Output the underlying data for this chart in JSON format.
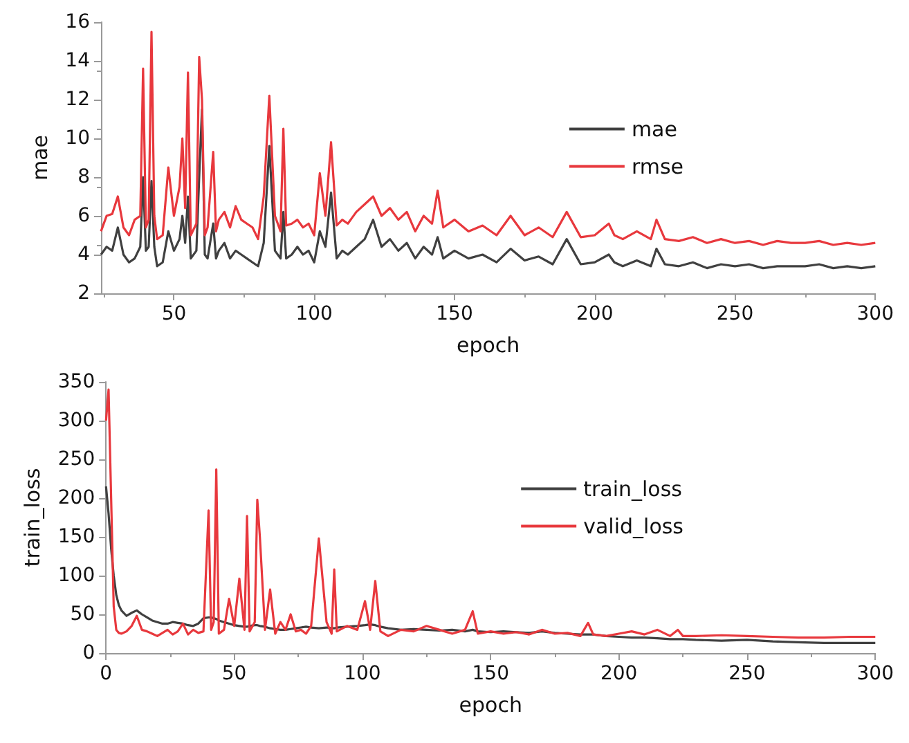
{
  "chart_data": [
    {
      "type": "line",
      "xlabel": "epoch",
      "ylabel": "mae",
      "xlim": [
        24,
        300
      ],
      "xticks": [
        50,
        100,
        150,
        200,
        250,
        300
      ],
      "ylim": [
        2,
        16
      ],
      "yticks": [
        2,
        4,
        6,
        8,
        10,
        12,
        14,
        16
      ],
      "grid": false,
      "legend": "right",
      "marker": "none",
      "line_style": "solid",
      "x": [
        24,
        26,
        28,
        30,
        32,
        34,
        36,
        38,
        39,
        40,
        41,
        42,
        43,
        44,
        46,
        48,
        50,
        52,
        53,
        54,
        55,
        56,
        58,
        59,
        60,
        61,
        62,
        64,
        65,
        66,
        68,
        70,
        72,
        74,
        76,
        78,
        80,
        82,
        84,
        86,
        88,
        89,
        90,
        92,
        94,
        96,
        98,
        100,
        102,
        104,
        106,
        108,
        110,
        112,
        115,
        118,
        121,
        124,
        127,
        130,
        133,
        136,
        139,
        142,
        144,
        146,
        150,
        155,
        160,
        165,
        170,
        175,
        180,
        185,
        190,
        195,
        200,
        205,
        207,
        210,
        215,
        220,
        222,
        225,
        230,
        235,
        240,
        245,
        250,
        255,
        260,
        265,
        270,
        275,
        280,
        285,
        290,
        295,
        300
      ],
      "series": [
        {
          "name": "mae",
          "color": "#404040",
          "values": [
            4.0,
            4.4,
            4.2,
            5.4,
            4.0,
            3.6,
            3.8,
            4.4,
            8.0,
            4.2,
            4.4,
            7.8,
            4.4,
            3.4,
            3.6,
            5.2,
            4.2,
            4.8,
            6.0,
            4.6,
            7.0,
            3.8,
            4.2,
            8.0,
            11.5,
            4.0,
            3.8,
            5.6,
            3.8,
            4.2,
            4.6,
            3.8,
            4.2,
            4.0,
            3.8,
            3.6,
            3.4,
            4.6,
            9.6,
            4.2,
            3.8,
            6.2,
            3.8,
            4.0,
            4.4,
            4.0,
            4.2,
            3.6,
            5.2,
            4.4,
            7.2,
            3.8,
            4.2,
            4.0,
            4.4,
            4.8,
            5.8,
            4.4,
            4.8,
            4.2,
            4.6,
            3.8,
            4.4,
            4.0,
            4.9,
            3.8,
            4.2,
            3.8,
            4.0,
            3.6,
            4.3,
            3.7,
            3.9,
            3.5,
            4.8,
            3.5,
            3.6,
            4.0,
            3.6,
            3.4,
            3.7,
            3.4,
            4.3,
            3.5,
            3.4,
            3.6,
            3.3,
            3.5,
            3.4,
            3.5,
            3.3,
            3.4,
            3.4,
            3.4,
            3.5,
            3.3,
            3.4,
            3.3,
            3.4
          ]
        },
        {
          "name": "rmse",
          "color": "#e8383d",
          "values": [
            5.2,
            6.0,
            6.1,
            7.0,
            5.4,
            5.0,
            5.8,
            6.0,
            13.6,
            5.4,
            5.8,
            15.5,
            6.0,
            4.8,
            5.0,
            8.5,
            6.0,
            7.5,
            10.0,
            6.4,
            13.4,
            5.0,
            5.6,
            14.2,
            12.0,
            5.0,
            5.4,
            9.3,
            5.2,
            5.8,
            6.2,
            5.4,
            6.5,
            5.8,
            5.6,
            5.4,
            4.8,
            7.0,
            12.2,
            6.0,
            5.2,
            10.5,
            5.5,
            5.6,
            5.8,
            5.4,
            5.6,
            5.0,
            8.2,
            6.0,
            9.8,
            5.5,
            5.8,
            5.6,
            6.2,
            6.6,
            7.0,
            6.0,
            6.4,
            5.8,
            6.2,
            5.2,
            6.0,
            5.6,
            7.3,
            5.4,
            5.8,
            5.2,
            5.5,
            5.0,
            6.0,
            5.0,
            5.4,
            4.9,
            6.2,
            4.9,
            5.0,
            5.6,
            5.0,
            4.8,
            5.2,
            4.8,
            5.8,
            4.8,
            4.7,
            4.9,
            4.6,
            4.8,
            4.6,
            4.7,
            4.5,
            4.7,
            4.6,
            4.6,
            4.7,
            4.5,
            4.6,
            4.5,
            4.6
          ]
        }
      ]
    },
    {
      "type": "line",
      "xlabel": "epoch",
      "ylabel": "train_loss",
      "xlim": [
        0,
        300
      ],
      "xticks": [
        0,
        50,
        100,
        150,
        200,
        250,
        300
      ],
      "ylim": [
        0,
        350
      ],
      "yticks": [
        0,
        50,
        100,
        150,
        200,
        250,
        300,
        350
      ],
      "grid": false,
      "legend": "right",
      "marker": "none",
      "line_style": "solid",
      "x": [
        0,
        1,
        2,
        3,
        4,
        5,
        6,
        8,
        10,
        12,
        14,
        16,
        18,
        20,
        22,
        24,
        26,
        28,
        30,
        32,
        34,
        36,
        38,
        40,
        41,
        42,
        43,
        44,
        46,
        48,
        50,
        52,
        54,
        55,
        56,
        58,
        59,
        60,
        62,
        64,
        66,
        68,
        70,
        72,
        74,
        76,
        78,
        80,
        83,
        86,
        88,
        89,
        90,
        94,
        98,
        101,
        103,
        105,
        107,
        110,
        115,
        120,
        125,
        130,
        135,
        140,
        143,
        145,
        150,
        155,
        160,
        165,
        170,
        175,
        180,
        185,
        188,
        190,
        195,
        200,
        205,
        210,
        215,
        220,
        223,
        225,
        230,
        240,
        250,
        260,
        270,
        280,
        290,
        300
      ],
      "series": [
        {
          "name": "train_loss",
          "color": "#404040",
          "values": [
            215,
            180,
            135,
            100,
            75,
            62,
            55,
            48,
            52,
            55,
            50,
            46,
            42,
            40,
            38,
            38,
            40,
            39,
            38,
            36,
            35,
            38,
            45,
            46,
            46,
            45,
            44,
            42,
            40,
            38,
            36,
            35,
            34,
            34,
            35,
            36,
            36,
            35,
            34,
            32,
            31,
            30,
            30,
            31,
            32,
            33,
            34,
            33,
            32,
            33,
            32,
            32,
            33,
            34,
            35,
            36,
            37,
            36,
            34,
            32,
            30,
            31,
            30,
            29,
            30,
            28,
            30,
            28,
            27,
            28,
            27,
            26,
            28,
            26,
            25,
            24,
            24,
            24,
            22,
            21,
            20,
            20,
            19,
            18,
            18,
            18,
            17,
            16,
            17,
            15,
            14,
            13,
            13,
            13
          ]
        },
        {
          "name": "valid_loss",
          "color": "#e8383d",
          "values": [
            300,
            340,
            200,
            60,
            30,
            26,
            25,
            28,
            35,
            48,
            30,
            28,
            25,
            22,
            26,
            30,
            24,
            28,
            38,
            24,
            30,
            26,
            28,
            184,
            30,
            40,
            237,
            25,
            30,
            70,
            35,
            96,
            30,
            177,
            28,
            40,
            198,
            150,
            30,
            82,
            25,
            40,
            30,
            50,
            28,
            30,
            25,
            35,
            148,
            40,
            25,
            108,
            28,
            35,
            30,
            67,
            30,
            93,
            28,
            22,
            30,
            28,
            35,
            30,
            25,
            30,
            54,
            25,
            28,
            25,
            27,
            24,
            30,
            25,
            26,
            22,
            39,
            24,
            22,
            25,
            28,
            24,
            30,
            22,
            30,
            22,
            22,
            23,
            22,
            21,
            20,
            20,
            21,
            21
          ]
        }
      ]
    }
  ]
}
